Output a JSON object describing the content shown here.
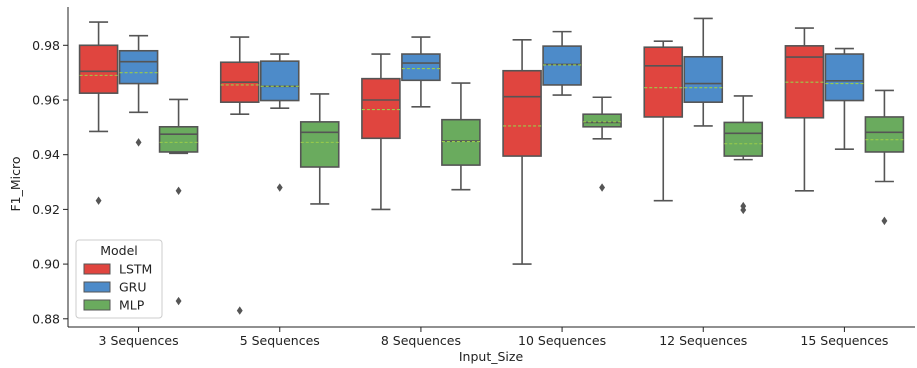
{
  "chart_data": {
    "type": "boxplot",
    "xlabel": "Input_Size",
    "ylabel": "F1_Micro",
    "ylim": [
      0.877,
      0.994
    ],
    "yticks": [
      0.88,
      0.9,
      0.92,
      0.94,
      0.96,
      0.98
    ],
    "ytick_labels": [
      "0.88",
      "0.90",
      "0.92",
      "0.94",
      "0.96",
      "0.98"
    ],
    "categories": [
      "3 Sequences",
      "5 Sequences",
      "8 Sequences",
      "10 Sequences",
      "12 Sequences",
      "15 Sequences"
    ],
    "grid": false,
    "legend": {
      "title": "Model",
      "placement": "lower-left"
    },
    "series": [
      {
        "name": "LSTM",
        "color": "#e0453f",
        "stats": [
          {
            "whislo": 0.9485,
            "q1": 0.9625,
            "med": 0.9705,
            "q3": 0.98,
            "whishi": 0.9885,
            "mean": 0.969,
            "fliers": [
              0.9232
            ]
          },
          {
            "whislo": 0.9548,
            "q1": 0.9592,
            "med": 0.9665,
            "q3": 0.9738,
            "whishi": 0.983,
            "mean": 0.9655,
            "fliers": [
              0.883
            ]
          },
          {
            "whislo": 0.92,
            "q1": 0.946,
            "med": 0.96,
            "q3": 0.9678,
            "whishi": 0.9768,
            "mean": 0.9565,
            "fliers": []
          },
          {
            "whislo": 0.9,
            "q1": 0.9395,
            "med": 0.9612,
            "q3": 0.9707,
            "whishi": 0.982,
            "mean": 0.9505,
            "fliers": []
          },
          {
            "whislo": 0.9232,
            "q1": 0.9538,
            "med": 0.9725,
            "q3": 0.9793,
            "whishi": 0.9815,
            "mean": 0.9645,
            "fliers": []
          },
          {
            "whislo": 0.9268,
            "q1": 0.9535,
            "med": 0.9757,
            "q3": 0.9798,
            "whishi": 0.9863,
            "mean": 0.9665,
            "fliers": []
          }
        ]
      },
      {
        "name": "GRU",
        "color": "#4d8bc9",
        "stats": [
          {
            "whislo": 0.9555,
            "q1": 0.966,
            "med": 0.974,
            "q3": 0.978,
            "whishi": 0.9835,
            "mean": 0.97,
            "fliers": [
              0.9445
            ]
          },
          {
            "whislo": 0.957,
            "q1": 0.9598,
            "med": 0.965,
            "q3": 0.9742,
            "whishi": 0.9768,
            "mean": 0.965,
            "fliers": [
              0.928
            ]
          },
          {
            "whislo": 0.9575,
            "q1": 0.9672,
            "med": 0.9735,
            "q3": 0.9768,
            "whishi": 0.983,
            "mean": 0.9715,
            "fliers": []
          },
          {
            "whislo": 0.9618,
            "q1": 0.9655,
            "med": 0.973,
            "q3": 0.9797,
            "whishi": 0.985,
            "mean": 0.9728,
            "fliers": []
          },
          {
            "whislo": 0.9505,
            "q1": 0.9592,
            "med": 0.966,
            "q3": 0.9758,
            "whishi": 0.9898,
            "mean": 0.9645,
            "fliers": []
          },
          {
            "whislo": 0.942,
            "q1": 0.9598,
            "med": 0.967,
            "q3": 0.9768,
            "whishi": 0.9788,
            "mean": 0.966,
            "fliers": []
          }
        ]
      },
      {
        "name": "MLP",
        "color": "#6aab5e",
        "stats": [
          {
            "whislo": 0.9405,
            "q1": 0.941,
            "med": 0.9475,
            "q3": 0.9502,
            "whishi": 0.9602,
            "mean": 0.9445,
            "fliers": [
              0.9268,
              0.8865
            ]
          },
          {
            "whislo": 0.922,
            "q1": 0.9355,
            "med": 0.9482,
            "q3": 0.952,
            "whishi": 0.9622,
            "mean": 0.9445,
            "fliers": []
          },
          {
            "whislo": 0.9272,
            "q1": 0.9362,
            "med": 0.945,
            "q3": 0.9528,
            "whishi": 0.9662,
            "mean": 0.9448,
            "fliers": []
          },
          {
            "whislo": 0.9458,
            "q1": 0.9502,
            "med": 0.9518,
            "q3": 0.9548,
            "whishi": 0.961,
            "mean": 0.952,
            "fliers": [
              0.928
            ]
          },
          {
            "whislo": 0.9382,
            "q1": 0.9395,
            "med": 0.9478,
            "q3": 0.9518,
            "whishi": 0.9615,
            "mean": 0.944,
            "fliers": [
              0.9212,
              0.9198
            ]
          },
          {
            "whislo": 0.9302,
            "q1": 0.941,
            "med": 0.9482,
            "q3": 0.9538,
            "whishi": 0.9635,
            "mean": 0.9455,
            "fliers": [
              0.9158
            ]
          }
        ]
      }
    ],
    "mean_line_color": "#9acd4a",
    "element_color": "#555555"
  }
}
